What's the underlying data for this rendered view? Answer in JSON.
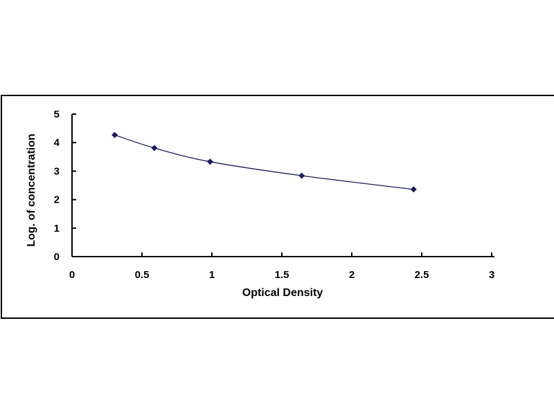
{
  "chart_data": {
    "type": "scatter",
    "title": "",
    "xlabel": "Optical Density",
    "ylabel": "Log. of concentration",
    "xlim": [
      0,
      3
    ],
    "ylim": [
      0,
      5
    ],
    "xticks": [
      "0",
      "0.5",
      "1",
      "1.5",
      "2",
      "2.5",
      "3"
    ],
    "yticks": [
      "0",
      "1",
      "2",
      "3",
      "4",
      "5"
    ],
    "grid": false,
    "legend": "none",
    "smooth_line": true,
    "series": [
      {
        "x": [
          0.305,
          0.589,
          0.987,
          1.642,
          2.442
        ],
        "y": [
          4.27,
          3.81,
          3.33,
          2.84,
          2.36
        ],
        "color": "#1a1a5e"
      }
    ]
  }
}
